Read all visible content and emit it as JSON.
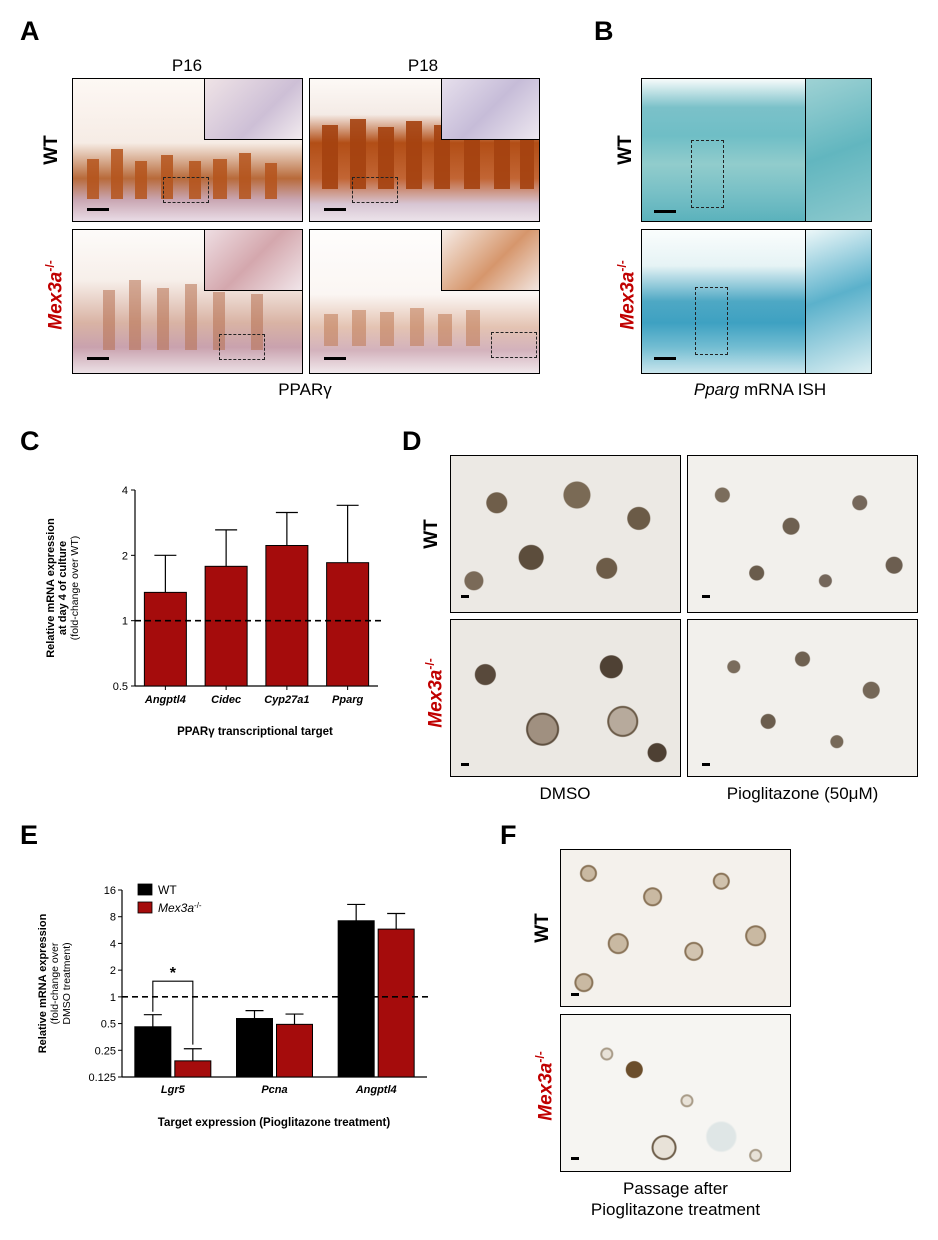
{
  "panels": {
    "A": {
      "letter": "A",
      "col1": "P16",
      "col2": "P18",
      "row1": "WT",
      "row2": "Mex3a",
      "row2_sup": "-/-",
      "caption": "PPARγ"
    },
    "B": {
      "letter": "B",
      "row1": "WT",
      "row2": "Mex3a",
      "row2_sup": "-/-",
      "caption_italic": "Pparg",
      "caption_rest": " mRNA ISH"
    },
    "C": {
      "letter": "C"
    },
    "D": {
      "letter": "D",
      "row1": "WT",
      "row2": "Mex3a",
      "row2_sup": "-/-",
      "col1": "DMSO",
      "col2": "Pioglitazone (50μM)"
    },
    "E": {
      "letter": "E"
    },
    "F": {
      "letter": "F",
      "row1": "WT",
      "row2": "Mex3a",
      "row2_sup": "-/-",
      "caption_line1": "Passage after",
      "caption_line2": "Pioglitazone treatment"
    }
  },
  "chart_data": [
    {
      "id": "C",
      "type": "bar",
      "scale": "log2",
      "categories": [
        "Angptl4",
        "Cidec",
        "Cyp27a1",
        "Pparg"
      ],
      "values": [
        1.35,
        1.78,
        2.22,
        1.85
      ],
      "errors_upper": [
        2.0,
        2.62,
        3.15,
        3.4
      ],
      "ylabel_lines": [
        "Relative mRNA expression",
        "at day 4 of culture"
      ],
      "ylabel_sub": "(fold-change over WT)",
      "xlabel": "PPARγ transcriptional target",
      "yticks": [
        0.5,
        1,
        2,
        4
      ],
      "ytick_labels": [
        "0.5",
        "1",
        "2",
        "4"
      ],
      "ylim": [
        0.5,
        4
      ],
      "reference_line": 1,
      "color": "#a50c0c"
    },
    {
      "id": "E",
      "type": "bar",
      "scale": "log2",
      "categories": [
        "Lgr5",
        "Pcna",
        "Angptl4"
      ],
      "series": [
        {
          "name": "WT",
          "color": "#000000",
          "values": [
            0.46,
            0.57,
            7.2
          ],
          "errors_upper": [
            0.63,
            0.7,
            11.0
          ]
        },
        {
          "name": "Mex3a",
          "name_sup": "-/-",
          "color": "#a50c0c",
          "values": [
            0.19,
            0.49,
            5.8
          ],
          "errors_upper": [
            0.26,
            0.64,
            8.7
          ]
        }
      ],
      "ylabel_line1": "Relative mRNA expression",
      "ylabel_sub": [
        "(fold-change over",
        "DMSO treatment)"
      ],
      "xlabel": "Target expression (Pioglitazone treatment)",
      "yticks": [
        0.125,
        0.25,
        0.5,
        1,
        2,
        4,
        8,
        16
      ],
      "ytick_labels": [
        "0.125",
        "0.25",
        "0.5",
        "1",
        "2",
        "4",
        "8",
        "16"
      ],
      "ylim": [
        0.125,
        16
      ],
      "reference_line": 1,
      "significance": "*"
    }
  ]
}
